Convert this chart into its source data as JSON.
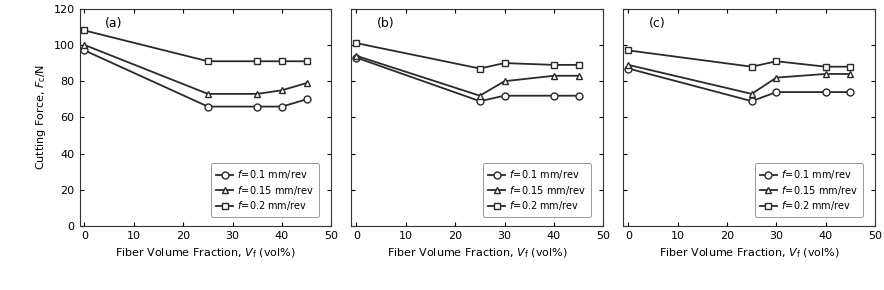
{
  "panels": [
    {
      "label": "(a)",
      "x": [
        0,
        25,
        35,
        40,
        45
      ],
      "y_f01": [
        97,
        66,
        66,
        66,
        70
      ],
      "y_f015": [
        100,
        73,
        73,
        75,
        79
      ],
      "y_f02": [
        108,
        91,
        91,
        91,
        91
      ]
    },
    {
      "label": "(b)",
      "x": [
        0,
        25,
        30,
        40,
        45
      ],
      "y_f01": [
        93,
        69,
        72,
        72,
        72
      ],
      "y_f015": [
        94,
        72,
        80,
        83,
        83
      ],
      "y_f02": [
        101,
        87,
        90,
        89,
        89
      ]
    },
    {
      "label": "(c)",
      "x": [
        0,
        25,
        30,
        40,
        45
      ],
      "y_f01": [
        87,
        69,
        74,
        74,
        74
      ],
      "y_f015": [
        89,
        73,
        82,
        84,
        84
      ],
      "y_f02": [
        97,
        88,
        91,
        88,
        88
      ]
    }
  ],
  "ylabel": "Cutting Force, $F_{c}$/N",
  "xlabel_parts": [
    "Fiber Volume Fraction, ",
    "V",
    "f",
    " (vol%)"
  ],
  "ylim": [
    0,
    120
  ],
  "yticks": [
    0,
    20,
    40,
    60,
    80,
    100,
    120
  ],
  "xlim": [
    -1,
    50
  ],
  "xticks": [
    0,
    10,
    20,
    30,
    40,
    50
  ],
  "legend_labels": [
    "f=0.1 mm/rev",
    "f=0.15 mm/rev",
    "f=0.2 mm/rev"
  ],
  "line_color": "#2a2a2a",
  "markersize": 5,
  "linewidth": 1.3,
  "bg_color": "#ffffff",
  "figsize": [
    8.84,
    2.9
  ],
  "dpi": 100
}
